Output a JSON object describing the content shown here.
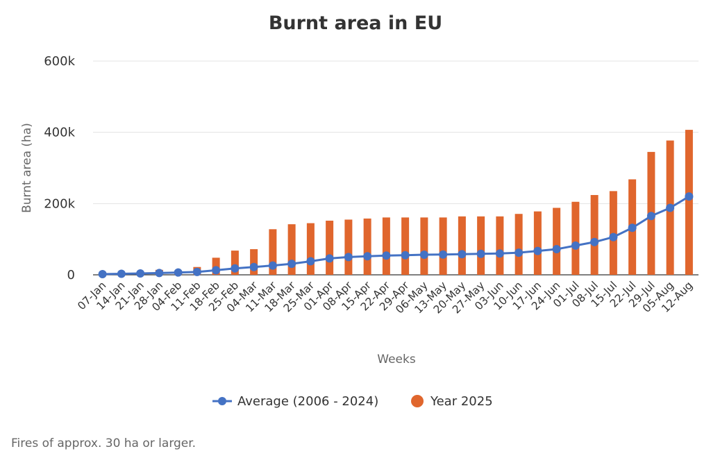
{
  "chart_data": {
    "type": "bar+line",
    "title": "Burnt area in EU",
    "xlabel": "Weeks",
    "ylabel": "Burnt area (ha)",
    "ylim": [
      0,
      600000
    ],
    "yticks": [
      0,
      200000,
      400000,
      600000
    ],
    "ytick_labels": [
      "0",
      "200k",
      "400k",
      "600k"
    ],
    "grid": true,
    "legend_position": "bottom-center",
    "categories": [
      "07-Jan",
      "14-Jan",
      "21-Jan",
      "28-Jan",
      "04-Feb",
      "11-Feb",
      "18-Feb",
      "25-Feb",
      "04-Mar",
      "11-Mar",
      "18-Mar",
      "25-Mar",
      "01-Apr",
      "08-Apr",
      "15-Apr",
      "22-Apr",
      "29-Apr",
      "06-May",
      "13-May",
      "20-May",
      "27-May",
      "03-Jun",
      "10-Jun",
      "17-Jun",
      "24-Jun",
      "01-Jul",
      "08-Jul",
      "15-Jul",
      "22-Jul",
      "29-Jul",
      "05-Aug",
      "12-Aug"
    ],
    "series": [
      {
        "name": "Average (2006 - 2024)",
        "type": "line",
        "color": "#4472c4",
        "values": [
          2000,
          3000,
          4000,
          5000,
          6500,
          8000,
          13000,
          18000,
          22000,
          26000,
          31000,
          38000,
          46000,
          50000,
          52000,
          54000,
          55000,
          56500,
          57000,
          58000,
          59000,
          60000,
          62000,
          67000,
          72000,
          82000,
          92000,
          106000,
          132000,
          165000,
          188000,
          220000
        ]
      },
      {
        "name": "Year 2025",
        "type": "bar",
        "color": "#e0662d",
        "values": [
          3000,
          3500,
          5000,
          14000,
          7000,
          22000,
          48000,
          68000,
          72000,
          128000,
          142000,
          145000,
          152000,
          155000,
          158000,
          161000,
          161000,
          161000,
          161000,
          164000,
          164000,
          164000,
          171000,
          178000,
          188000,
          205000,
          224000,
          235000,
          268000,
          345000,
          377000,
          407000
        ]
      }
    ]
  },
  "footnote": "Fires of approx. 30 ha or larger."
}
